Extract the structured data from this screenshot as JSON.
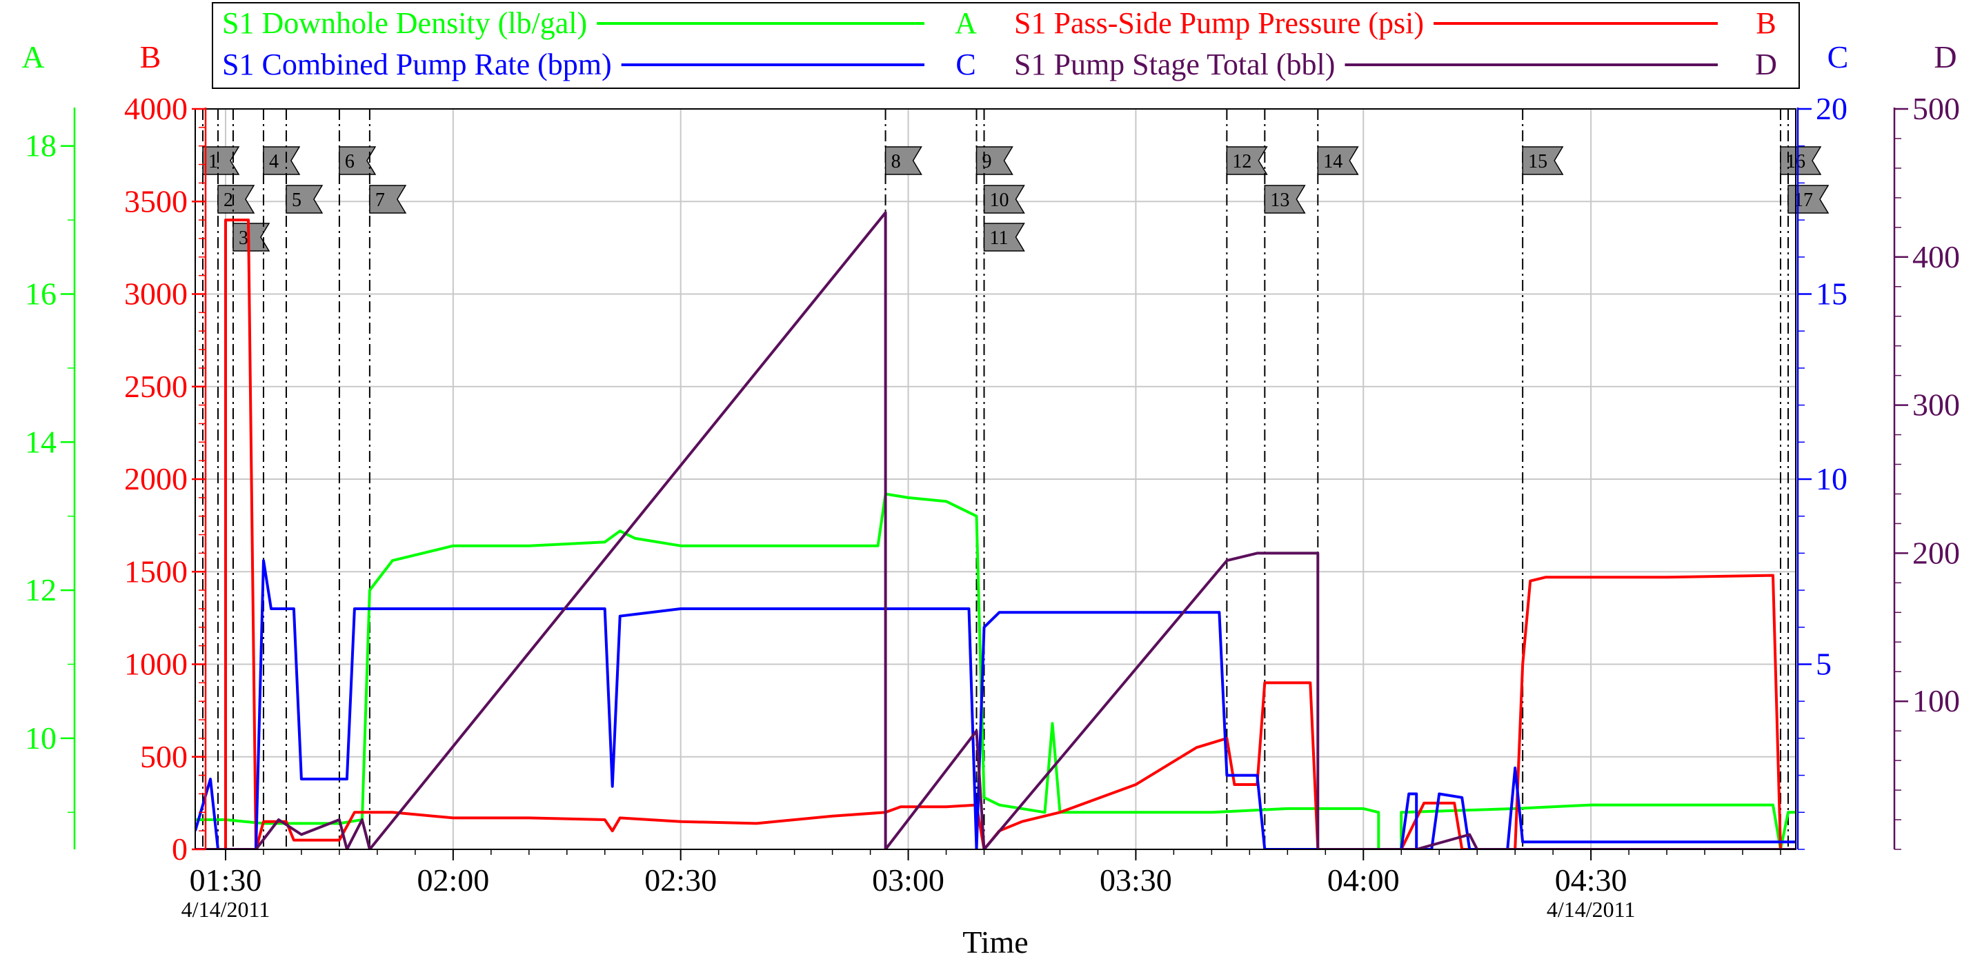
{
  "chart_data": {
    "type": "line",
    "xlabel": "Time",
    "x_range": [
      "01:26",
      "04:57"
    ],
    "x_ticks": [
      "01:30",
      "02:00",
      "02:30",
      "03:00",
      "03:30",
      "04:00",
      "04:30"
    ],
    "date_labels": [
      {
        "at": "01:30",
        "text": "4/14/2011"
      },
      {
        "at": "04:30",
        "text": "4/14/2011"
      }
    ],
    "grid": true,
    "legend": {
      "placement": "top",
      "entries": [
        {
          "label": "S1 Downhole Density (lb/gal)",
          "axis": "A",
          "color": "#00ff00"
        },
        {
          "label": "S1 Pass-Side Pump Pressure (psi)",
          "axis": "B",
          "color": "#ff0000"
        },
        {
          "label": "S1 Combined Pump Rate (bpm)",
          "axis": "C",
          "color": "#0000ff"
        },
        {
          "label": "S1 Pump Stage Total (bbl)",
          "axis": "D",
          "color": "#5b0f5b"
        }
      ]
    },
    "axes": {
      "A": {
        "letter": "A",
        "range": [
          8.5,
          18.5
        ],
        "ticks": [
          "10",
          "12",
          "14",
          "16",
          "18"
        ],
        "color": "#00ff00"
      },
      "B": {
        "letter": "B",
        "range": [
          0,
          4000
        ],
        "ticks": [
          "0",
          "500",
          "1000",
          "1500",
          "2000",
          "2500",
          "3000",
          "3500",
          "4000"
        ],
        "color": "#ff0000"
      },
      "C": {
        "letter": "C",
        "range": [
          0,
          20
        ],
        "ticks": [
          "5",
          "10",
          "15",
          "20"
        ],
        "color": "#0000ff"
      },
      "D": {
        "letter": "D",
        "range": [
          0,
          500
        ],
        "ticks": [
          "100",
          "200",
          "300",
          "400",
          "500"
        ],
        "color": "#5b0f5b"
      }
    },
    "event_markers": [
      {
        "label": "1",
        "time": "01:27",
        "row": 1
      },
      {
        "label": "2",
        "time": "01:29",
        "row": 2
      },
      {
        "label": "3",
        "time": "01:31",
        "row": 3
      },
      {
        "label": "4",
        "time": "01:35",
        "row": 1
      },
      {
        "label": "5",
        "time": "01:38",
        "row": 2
      },
      {
        "label": "6",
        "time": "01:45",
        "row": 1
      },
      {
        "label": "7",
        "time": "01:49",
        "row": 2
      },
      {
        "label": "8",
        "time": "02:57",
        "row": 1
      },
      {
        "label": "9",
        "time": "03:09",
        "row": 1
      },
      {
        "label": "10",
        "time": "03:10",
        "row": 2
      },
      {
        "label": "11",
        "time": "03:10",
        "row": 3
      },
      {
        "label": "12",
        "time": "03:42",
        "row": 1
      },
      {
        "label": "13",
        "time": "03:47",
        "row": 2
      },
      {
        "label": "14",
        "time": "03:54",
        "row": 1
      },
      {
        "label": "15",
        "time": "04:21",
        "row": 1
      },
      {
        "label": "16",
        "time": "04:55",
        "row": 1
      },
      {
        "label": "17",
        "time": "04:56",
        "row": 2
      }
    ],
    "series": [
      {
        "name": "S1 Downhole Density (lb/gal)",
        "axis": "A",
        "color": "#00ff00",
        "points": [
          [
            "01:26",
            8.9
          ],
          [
            "01:30",
            8.9
          ],
          [
            "01:35",
            8.85
          ],
          [
            "01:45",
            8.85
          ],
          [
            "01:48",
            8.9
          ],
          [
            "01:49",
            12.0
          ],
          [
            "01:52",
            12.4
          ],
          [
            "02:00",
            12.6
          ],
          [
            "02:10",
            12.6
          ],
          [
            "02:20",
            12.65
          ],
          [
            "02:22",
            12.8
          ],
          [
            "02:24",
            12.7
          ],
          [
            "02:30",
            12.6
          ],
          [
            "02:40",
            12.6
          ],
          [
            "02:50",
            12.6
          ],
          [
            "02:56",
            12.6
          ],
          [
            "02:57",
            13.3
          ],
          [
            "03:00",
            13.25
          ],
          [
            "03:05",
            13.2
          ],
          [
            "03:09",
            13.0
          ],
          [
            "03:10",
            9.2
          ],
          [
            "03:12",
            9.1
          ],
          [
            "03:18",
            9.0
          ],
          [
            "03:19",
            10.2
          ],
          [
            "03:20",
            9.0
          ],
          [
            "03:30",
            9.0
          ],
          [
            "03:40",
            9.0
          ],
          [
            "03:50",
            9.05
          ],
          [
            "04:00",
            9.05
          ],
          [
            "04:02",
            9.0
          ],
          [
            "04:02",
            8.5
          ],
          [
            "04:05",
            8.5
          ],
          [
            "04:05",
            9.0
          ],
          [
            "04:20",
            9.05
          ],
          [
            "04:30",
            9.1
          ],
          [
            "04:40",
            9.1
          ],
          [
            "04:54",
            9.1
          ],
          [
            "04:55",
            8.5
          ],
          [
            "04:56",
            9.0
          ],
          [
            "04:57",
            9.0
          ]
        ]
      },
      {
        "name": "S1 Pass-Side Pump Pressure (psi)",
        "axis": "B",
        "color": "#ff0000",
        "points": [
          [
            "01:26",
            0
          ],
          [
            "01:30",
            0
          ],
          [
            "01:30",
            3400
          ],
          [
            "01:33",
            3400
          ],
          [
            "01:34",
            0
          ],
          [
            "01:35",
            150
          ],
          [
            "01:38",
            150
          ],
          [
            "01:39",
            50
          ],
          [
            "01:45",
            50
          ],
          [
            "01:47",
            200
          ],
          [
            "01:52",
            200
          ],
          [
            "02:00",
            170
          ],
          [
            "02:10",
            170
          ],
          [
            "02:20",
            160
          ],
          [
            "02:21",
            100
          ],
          [
            "02:22",
            170
          ],
          [
            "02:30",
            150
          ],
          [
            "02:40",
            140
          ],
          [
            "02:50",
            180
          ],
          [
            "02:57",
            200
          ],
          [
            "02:59",
            230
          ],
          [
            "03:05",
            230
          ],
          [
            "03:09",
            240
          ],
          [
            "03:10",
            0
          ],
          [
            "03:12",
            100
          ],
          [
            "03:15",
            150
          ],
          [
            "03:20",
            200
          ],
          [
            "03:30",
            350
          ],
          [
            "03:38",
            550
          ],
          [
            "03:42",
            600
          ],
          [
            "03:43",
            350
          ],
          [
            "03:46",
            350
          ],
          [
            "03:47",
            900
          ],
          [
            "03:53",
            900
          ],
          [
            "03:54",
            0
          ],
          [
            "04:05",
            0
          ],
          [
            "04:08",
            250
          ],
          [
            "04:12",
            250
          ],
          [
            "04:13",
            0
          ],
          [
            "04:20",
            0
          ],
          [
            "04:21",
            1000
          ],
          [
            "04:22",
            1450
          ],
          [
            "04:24",
            1470
          ],
          [
            "04:40",
            1470
          ],
          [
            "04:54",
            1480
          ],
          [
            "04:55",
            0
          ],
          [
            "04:57",
            0
          ]
        ]
      },
      {
        "name": "S1 Combined Pump Rate (bpm)",
        "axis": "C",
        "color": "#0000ff",
        "points": [
          [
            "01:26",
            0.5
          ],
          [
            "01:28",
            1.9
          ],
          [
            "01:29",
            0
          ],
          [
            "01:34",
            0
          ],
          [
            "01:35",
            7.8
          ],
          [
            "01:36",
            6.5
          ],
          [
            "01:39",
            6.5
          ],
          [
            "01:40",
            1.9
          ],
          [
            "01:46",
            1.9
          ],
          [
            "01:47",
            6.5
          ],
          [
            "02:20",
            6.5
          ],
          [
            "02:21",
            1.7
          ],
          [
            "02:22",
            6.3
          ],
          [
            "02:30",
            6.5
          ],
          [
            "02:50",
            6.5
          ],
          [
            "03:08",
            6.5
          ],
          [
            "03:09",
            0
          ],
          [
            "03:10",
            6.0
          ],
          [
            "03:12",
            6.4
          ],
          [
            "03:20",
            6.4
          ],
          [
            "03:30",
            6.4
          ],
          [
            "03:41",
            6.4
          ],
          [
            "03:42",
            2.0
          ],
          [
            "03:46",
            2.0
          ],
          [
            "03:47",
            0
          ],
          [
            "04:05",
            0
          ],
          [
            "04:06",
            1.5
          ],
          [
            "04:07",
            1.5
          ],
          [
            "04:07",
            0
          ],
          [
            "04:09",
            0
          ],
          [
            "04:10",
            1.5
          ],
          [
            "04:13",
            1.4
          ],
          [
            "04:14",
            0
          ],
          [
            "04:19",
            0
          ],
          [
            "04:20",
            2.2
          ],
          [
            "04:21",
            0.2
          ],
          [
            "04:57",
            0.2
          ]
        ]
      },
      {
        "name": "S1 Pump Stage Total (bbl)",
        "axis": "D",
        "color": "#5b0f5b",
        "points": [
          [
            "01:26",
            0
          ],
          [
            "01:34",
            0
          ],
          [
            "01:37",
            20
          ],
          [
            "01:40",
            10
          ],
          [
            "01:45",
            20
          ],
          [
            "01:46",
            0
          ],
          [
            "01:48",
            20
          ],
          [
            "01:49",
            0
          ],
          [
            "02:57",
            430
          ],
          [
            "02:57",
            0
          ],
          [
            "03:09",
            80
          ],
          [
            "03:10",
            0
          ],
          [
            "03:42",
            195
          ],
          [
            "03:46",
            200
          ],
          [
            "03:54",
            200
          ],
          [
            "03:54",
            0
          ],
          [
            "04:07",
            0
          ],
          [
            "04:14",
            10
          ],
          [
            "04:15",
            0
          ],
          [
            "04:21",
            0
          ],
          [
            "04:57",
            0
          ]
        ]
      }
    ]
  }
}
